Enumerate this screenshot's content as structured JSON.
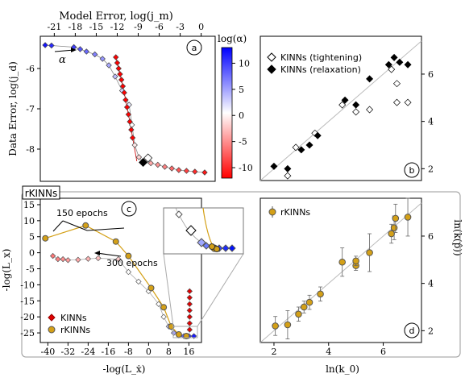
{
  "chart_data": [
    {
      "panel": "a",
      "type": "scatter",
      "xlabel_top": "Model Error, log(j_m)",
      "ylabel": "Data Error, log(j_d)",
      "colorbar_label": "log(α)",
      "x_ticks_top": [
        "-21",
        "-18",
        "-15",
        "-12",
        "-9",
        "-6",
        "-3",
        "0"
      ],
      "y_ticks": [
        "-6",
        "-7",
        "-8"
      ],
      "colorbar_ticks": [
        "10",
        "5",
        "0",
        "-5",
        "-10"
      ],
      "colorbar_range": [
        -12,
        13
      ],
      "annotation": "α",
      "xlim": [
        -23,
        2
      ],
      "ylim": [
        -8.8,
        -5.2
      ],
      "series": [
        {
          "values": [
            {
              "x": -22.3,
              "y": -5.42,
              "c": 11.0
            },
            {
              "x": -21.4,
              "y": -5.43,
              "c": 10.0
            },
            {
              "x": -18.2,
              "y": -5.47,
              "c": 9.0
            },
            {
              "x": -17.3,
              "y": -5.52,
              "c": 8.0
            },
            {
              "x": -16.4,
              "y": -5.58,
              "c": 7.0
            },
            {
              "x": -15.2,
              "y": -5.65,
              "c": 6.0
            },
            {
              "x": -14.1,
              "y": -5.76,
              "c": 5.0
            },
            {
              "x": -13.2,
              "y": -5.92,
              "c": 4.0
            },
            {
              "x": -12.3,
              "y": -6.2,
              "c": 3.0
            },
            {
              "x": -11.3,
              "y": -6.55,
              "c": 2.0
            },
            {
              "x": -10.3,
              "y": -6.9,
              "c": 1.0
            },
            {
              "x": -9.9,
              "y": -7.4,
              "c": 0.0
            },
            {
              "x": -9.5,
              "y": -7.9,
              "c": -1.0
            },
            {
              "x": -8.9,
              "y": -8.2,
              "c": -2.0
            },
            {
              "x": -8.2,
              "y": -8.33,
              "c": -3.0
            },
            {
              "x": -7.2,
              "y": -8.35,
              "c": -4.0
            },
            {
              "x": -6.2,
              "y": -8.39,
              "c": -5.0
            },
            {
              "x": -5.2,
              "y": -8.44,
              "c": -6.0
            },
            {
              "x": -4.2,
              "y": -8.48,
              "c": -7.0
            },
            {
              "x": -3.2,
              "y": -8.52,
              "c": -8.0
            },
            {
              "x": -2.1,
              "y": -8.54,
              "c": -9.0
            },
            {
              "x": -0.9,
              "y": -8.56,
              "c": -10.0
            },
            {
              "x": 0.5,
              "y": -8.58,
              "c": -11.0
            },
            {
              "x": -12.2,
              "y": -5.72,
              "c": -12.0
            },
            {
              "x": -12.0,
              "y": -5.86,
              "c": -12.0
            },
            {
              "x": -11.8,
              "y": -6.0,
              "c": -12.0
            },
            {
              "x": -11.6,
              "y": -6.14,
              "c": -12.0
            },
            {
              "x": -11.4,
              "y": -6.28,
              "c": -12.0
            },
            {
              "x": -11.2,
              "y": -6.44,
              "c": -12.0
            },
            {
              "x": -11.0,
              "y": -6.6,
              "c": -12.0
            },
            {
              "x": -10.8,
              "y": -6.78,
              "c": -12.0
            },
            {
              "x": -10.6,
              "y": -6.96,
              "c": -12.0
            },
            {
              "x": -10.4,
              "y": -7.14,
              "c": -12.0
            },
            {
              "x": -10.2,
              "y": -7.32,
              "c": -12.0
            },
            {
              "x": -10.0,
              "y": -7.52,
              "c": -12.0
            },
            {
              "x": -9.8,
              "y": -7.72,
              "c": -12.0
            }
          ]
        }
      ],
      "highlight_points": [
        {
          "x": -7.6,
          "y": -8.22,
          "marker": "open-diamond"
        },
        {
          "x": -8.3,
          "y": -8.33,
          "marker": "black-diamond"
        }
      ]
    },
    {
      "panel": "b",
      "type": "scatter",
      "ylabel_right": "ln(k(p̂))",
      "y_ticks": [
        "6",
        "4",
        "2"
      ],
      "xlim": [
        1.5,
        7.4
      ],
      "ylim": [
        1.5,
        7.6
      ],
      "series": [
        {
          "name": "KINNs (tightening)",
          "marker": "open-diamond",
          "values": [
            {
              "x": 2.5,
              "y": 1.7
            },
            {
              "x": 2.8,
              "y": 2.9
            },
            {
              "x": 3.5,
              "y": 3.5
            },
            {
              "x": 4.5,
              "y": 4.7
            },
            {
              "x": 5.0,
              "y": 4.4
            },
            {
              "x": 5.5,
              "y": 4.5
            },
            {
              "x": 6.3,
              "y": 6.2
            },
            {
              "x": 6.5,
              "y": 5.6
            },
            {
              "x": 6.5,
              "y": 4.8
            },
            {
              "x": 6.9,
              "y": 4.8
            }
          ]
        },
        {
          "name": "KINNs (relaxation)",
          "marker": "filled-diamond",
          "values": [
            {
              "x": 2.0,
              "y": 2.1
            },
            {
              "x": 2.5,
              "y": 2.0
            },
            {
              "x": 3.0,
              "y": 2.8
            },
            {
              "x": 3.3,
              "y": 3.0
            },
            {
              "x": 3.6,
              "y": 3.4
            },
            {
              "x": 4.6,
              "y": 4.9
            },
            {
              "x": 5.0,
              "y": 4.7
            },
            {
              "x": 5.5,
              "y": 5.8
            },
            {
              "x": 6.2,
              "y": 6.4
            },
            {
              "x": 6.4,
              "y": 6.7
            },
            {
              "x": 6.6,
              "y": 6.5
            },
            {
              "x": 6.9,
              "y": 6.4
            }
          ]
        }
      ]
    },
    {
      "panel": "c",
      "type": "line",
      "title_box": "rKINNs",
      "xlabel": "-log(L_ẋ)",
      "ylabel": "-log(L_x)",
      "x_ticks": [
        "-40",
        "-32",
        "-24",
        "-16",
        "-8",
        "0",
        "8",
        "16"
      ],
      "y_ticks": [
        "15",
        "10",
        "5",
        "0",
        "-5",
        "-10",
        "-15",
        "-20",
        "-25"
      ],
      "xlim": [
        -43,
        21
      ],
      "ylim": [
        -28,
        17
      ],
      "annotations": [
        "150 epochs",
        "300 epochs"
      ],
      "series": [
        {
          "name": "KINNs",
          "marker": "red-diamond",
          "values": [
            {
              "x": -38,
              "y": -1
            },
            {
              "x": -36,
              "y": -2
            },
            {
              "x": -34,
              "y": -2
            },
            {
              "x": -32,
              "y": -2.3
            },
            {
              "x": -28,
              "y": -2.2
            },
            {
              "x": -24,
              "y": -1.9
            },
            {
              "x": -20,
              "y": -1.7
            },
            {
              "x": -12,
              "y": -2
            },
            {
              "x": -8,
              "y": -6
            },
            {
              "x": -4,
              "y": -9
            },
            {
              "x": 0,
              "y": -12
            },
            {
              "x": 4,
              "y": -16
            },
            {
              "x": 6,
              "y": -20
            },
            {
              "x": 8,
              "y": -23
            },
            {
              "x": 10,
              "y": -25
            },
            {
              "x": 12,
              "y": -25.8
            },
            {
              "x": 14,
              "y": -26
            },
            {
              "x": 16,
              "y": -26
            },
            {
              "x": 18,
              "y": -26
            },
            {
              "x": 16.3,
              "y": -12
            },
            {
              "x": 16.3,
              "y": -14
            },
            {
              "x": 16.3,
              "y": -16
            },
            {
              "x": 16.3,
              "y": -18
            },
            {
              "x": 16.3,
              "y": -20
            },
            {
              "x": 16.3,
              "y": -22
            },
            {
              "x": 16.3,
              "y": -24
            }
          ]
        },
        {
          "name": "rKINNs",
          "marker": "gold-circle",
          "values": [
            {
              "x": -41,
              "y": 4.5
            },
            {
              "x": -25,
              "y": 8.5
            },
            {
              "x": -13,
              "y": 3.5
            },
            {
              "x": -8,
              "y": -1
            },
            {
              "x": 1,
              "y": -11
            },
            {
              "x": 6,
              "y": -17
            },
            {
              "x": 9,
              "y": -23
            },
            {
              "x": 12,
              "y": -25.5
            },
            {
              "x": 15,
              "y": -26
            }
          ]
        }
      ]
    },
    {
      "panel": "d",
      "type": "scatter",
      "xlabel": "ln(k_0)",
      "x_ticks": [
        "2",
        "4",
        "6"
      ],
      "y_ticks": [
        "6",
        "4",
        "2"
      ],
      "xlim": [
        1.5,
        7.4
      ],
      "ylim": [
        1.5,
        7.6
      ],
      "series": [
        {
          "name": "rKINNs",
          "marker": "gold-circle-errorbar",
          "values": [
            {
              "x": 2.05,
              "y": 2.2,
              "err": 0.4
            },
            {
              "x": 2.5,
              "y": 2.25,
              "err": 0.6
            },
            {
              "x": 2.9,
              "y": 2.7,
              "err": 0.3
            },
            {
              "x": 3.1,
              "y": 3.0,
              "err": 0.25
            },
            {
              "x": 3.3,
              "y": 3.2,
              "err": 0.3
            },
            {
              "x": 3.7,
              "y": 3.55,
              "err": 0.3
            },
            {
              "x": 4.5,
              "y": 4.9,
              "err": 0.6
            },
            {
              "x": 5.0,
              "y": 4.75,
              "err": 0.2
            },
            {
              "x": 5.0,
              "y": 4.95,
              "err": 0.2
            },
            {
              "x": 5.5,
              "y": 5.3,
              "err": 0.8
            },
            {
              "x": 6.3,
              "y": 6.1,
              "err": 0.4
            },
            {
              "x": 6.4,
              "y": 6.35,
              "err": 0.5
            },
            {
              "x": 6.45,
              "y": 6.75,
              "err": 0.6
            },
            {
              "x": 6.9,
              "y": 6.8,
              "err": 0.8
            }
          ]
        }
      ]
    }
  ],
  "panel_labels": [
    "a",
    "b",
    "c",
    "d"
  ]
}
